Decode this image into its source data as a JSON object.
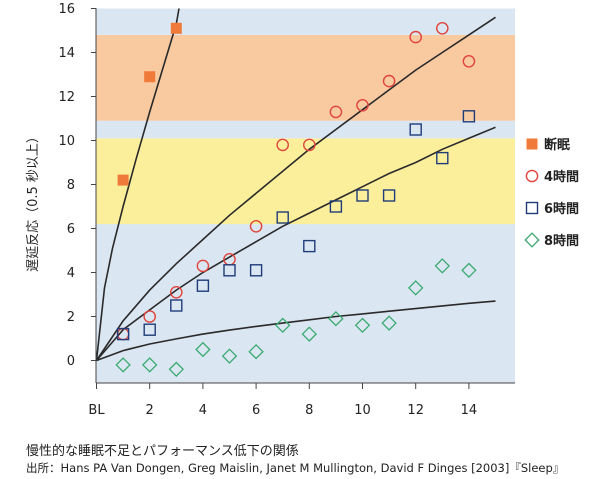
{
  "chart_data": {
    "type": "scatter",
    "ylabel": "遅延反応（0.5 秒以上）",
    "xlabel": "",
    "x_tick_labels": [
      {
        "x": 0,
        "label": "BL"
      },
      {
        "x": 2,
        "label": "2"
      },
      {
        "x": 4,
        "label": "4"
      },
      {
        "x": 6,
        "label": "6"
      },
      {
        "x": 8,
        "label": "8"
      },
      {
        "x": 10,
        "label": "10"
      },
      {
        "x": 12,
        "label": "12"
      },
      {
        "x": 14,
        "label": "14"
      }
    ],
    "xlim": [
      0,
      15.8
    ],
    "ylim": [
      -1.2,
      16
    ],
    "yticks": [
      0,
      2,
      4,
      6,
      8,
      10,
      12,
      14,
      16
    ],
    "grid": false,
    "legend_position": "right",
    "background_bands": [
      {
        "y0": -1.2,
        "y1": 6.2,
        "color": "#dae6f2"
      },
      {
        "y0": 6.2,
        "y1": 10.1,
        "color": "#fcef9c"
      },
      {
        "y0": 10.1,
        "y1": 10.9,
        "color": "#dae6f2"
      },
      {
        "y0": 10.9,
        "y1": 14.8,
        "color": "#f9c9a0"
      },
      {
        "y0": 14.8,
        "y1": 16,
        "color": "#dae6f2"
      }
    ],
    "series": [
      {
        "name": "断眠",
        "marker": "filled-square",
        "color": "#f07a3a",
        "x": [
          1,
          2,
          3
        ],
        "y": [
          8.2,
          12.9,
          15.1
        ],
        "trend": {
          "x": [
            0,
            0.3,
            0.6,
            1,
            1.5,
            2,
            2.5,
            3,
            3.1
          ],
          "y": [
            0,
            3.3,
            5.1,
            7.0,
            9.2,
            11.3,
            13.3,
            15.3,
            16.0
          ]
        }
      },
      {
        "name": "4時間",
        "marker": "open-circle",
        "color": "#e0443c",
        "x": [
          1,
          2,
          3,
          4,
          5,
          6,
          7,
          8,
          9,
          10,
          11,
          12,
          13,
          14
        ],
        "y": [
          1.2,
          2.0,
          3.1,
          4.3,
          4.6,
          6.1,
          9.8,
          9.8,
          11.3,
          11.6,
          12.7,
          14.7,
          15.1,
          13.6
        ],
        "trend": {
          "x": [
            0,
            1,
            2,
            3,
            4,
            5,
            6,
            7,
            8,
            9,
            10,
            11,
            12,
            13,
            14,
            15
          ],
          "y": [
            0,
            1.8,
            3.2,
            4.4,
            5.5,
            6.6,
            7.6,
            8.6,
            9.6,
            10.5,
            11.4,
            12.3,
            13.2,
            14.0,
            14.8,
            15.6
          ]
        }
      },
      {
        "name": "6時間",
        "marker": "open-square",
        "color": "#1f3c78",
        "x": [
          1,
          2,
          3,
          4,
          5,
          6,
          7,
          8,
          9,
          10,
          11,
          12,
          13,
          14
        ],
        "y": [
          1.2,
          1.4,
          2.5,
          3.4,
          4.1,
          4.1,
          6.5,
          5.2,
          7.0,
          7.5,
          7.5,
          10.5,
          9.2,
          11.1
        ],
        "trend": {
          "x": [
            0,
            1,
            2,
            3,
            4,
            5,
            6,
            7,
            8,
            9,
            10,
            11,
            12,
            13,
            14,
            15
          ],
          "y": [
            0,
            1.4,
            2.3,
            3.2,
            4.0,
            4.7,
            5.4,
            6.1,
            6.7,
            7.3,
            7.9,
            8.5,
            9.0,
            9.6,
            10.1,
            10.6
          ]
        }
      },
      {
        "name": "8時間",
        "marker": "open-diamond",
        "color": "#3aaa70",
        "x": [
          1,
          2,
          3,
          4,
          5,
          6,
          7,
          8,
          9,
          10,
          11,
          12,
          13,
          14
        ],
        "y": [
          -0.2,
          -0.2,
          -0.4,
          0.5,
          0.2,
          0.4,
          1.6,
          1.2,
          1.9,
          1.6,
          1.7,
          3.3,
          4.3,
          4.1
        ],
        "trend": {
          "x": [
            0,
            1,
            2,
            3,
            4,
            5,
            6,
            7,
            8,
            9,
            10,
            11,
            12,
            13,
            14,
            15
          ],
          "y": [
            0,
            0.45,
            0.75,
            0.98,
            1.2,
            1.38,
            1.55,
            1.7,
            1.85,
            2.0,
            2.12,
            2.24,
            2.36,
            2.48,
            2.6,
            2.7
          ]
        }
      }
    ]
  },
  "caption": "慢性的な睡眠不足とパフォーマンス低下の関係",
  "source": "出所：Hans PA Van Dongen, Greg Maislin, Janet M Mullington, David F Dinges [2003]『Sleep』"
}
